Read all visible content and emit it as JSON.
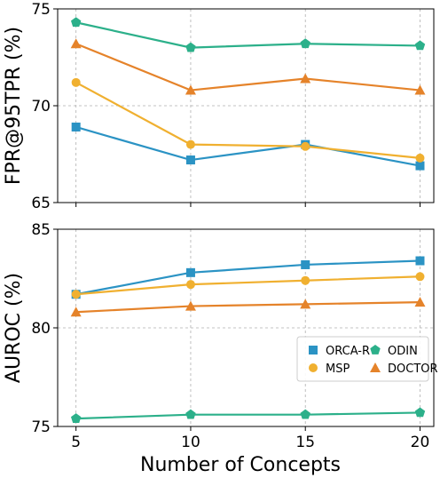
{
  "chart_data": [
    {
      "type": "line",
      "ylabel": "FPR@95TPR (%)",
      "xlabel": "",
      "x": [
        5,
        10,
        15,
        20
      ],
      "xlim": [
        4.2,
        20.6
      ],
      "ylim": [
        65,
        75
      ],
      "yticks": [
        65,
        70,
        75
      ],
      "xticks": [
        5,
        10,
        15,
        20
      ],
      "grid": true,
      "series": [
        {
          "name": "ORCA-R",
          "color": "#2b93c4",
          "marker": "square",
          "values": [
            68.9,
            67.2,
            68.0,
            66.9
          ]
        },
        {
          "name": "MSP",
          "color": "#f0b030",
          "marker": "circle",
          "values": [
            71.2,
            68.0,
            67.9,
            67.3
          ]
        },
        {
          "name": "ODIN",
          "color": "#2cb08a",
          "marker": "pentagon",
          "values": [
            74.3,
            73.0,
            73.2,
            73.1
          ]
        },
        {
          "name": "DOCTOR",
          "color": "#e5832a",
          "marker": "triangle",
          "values": [
            73.2,
            70.8,
            71.4,
            70.8
          ]
        }
      ]
    },
    {
      "type": "line",
      "ylabel": "AUROC (%)",
      "xlabel": "Number of Concepts",
      "x": [
        5,
        10,
        15,
        20
      ],
      "xlim": [
        4.2,
        20.6
      ],
      "ylim": [
        75,
        85
      ],
      "yticks": [
        75,
        80,
        85
      ],
      "xticks": [
        5,
        10,
        15,
        20
      ],
      "grid": true,
      "legend_position": "lower-right",
      "series": [
        {
          "name": "ORCA-R",
          "color": "#2b93c4",
          "marker": "square",
          "values": [
            81.7,
            82.8,
            83.2,
            83.4
          ]
        },
        {
          "name": "MSP",
          "color": "#f0b030",
          "marker": "circle",
          "values": [
            81.7,
            82.2,
            82.4,
            82.6
          ]
        },
        {
          "name": "ODIN",
          "color": "#2cb08a",
          "marker": "pentagon",
          "values": [
            75.4,
            75.6,
            75.6,
            75.7
          ]
        },
        {
          "name": "DOCTOR",
          "color": "#e5832a",
          "marker": "triangle",
          "values": [
            80.8,
            81.1,
            81.2,
            81.3
          ]
        }
      ]
    }
  ]
}
